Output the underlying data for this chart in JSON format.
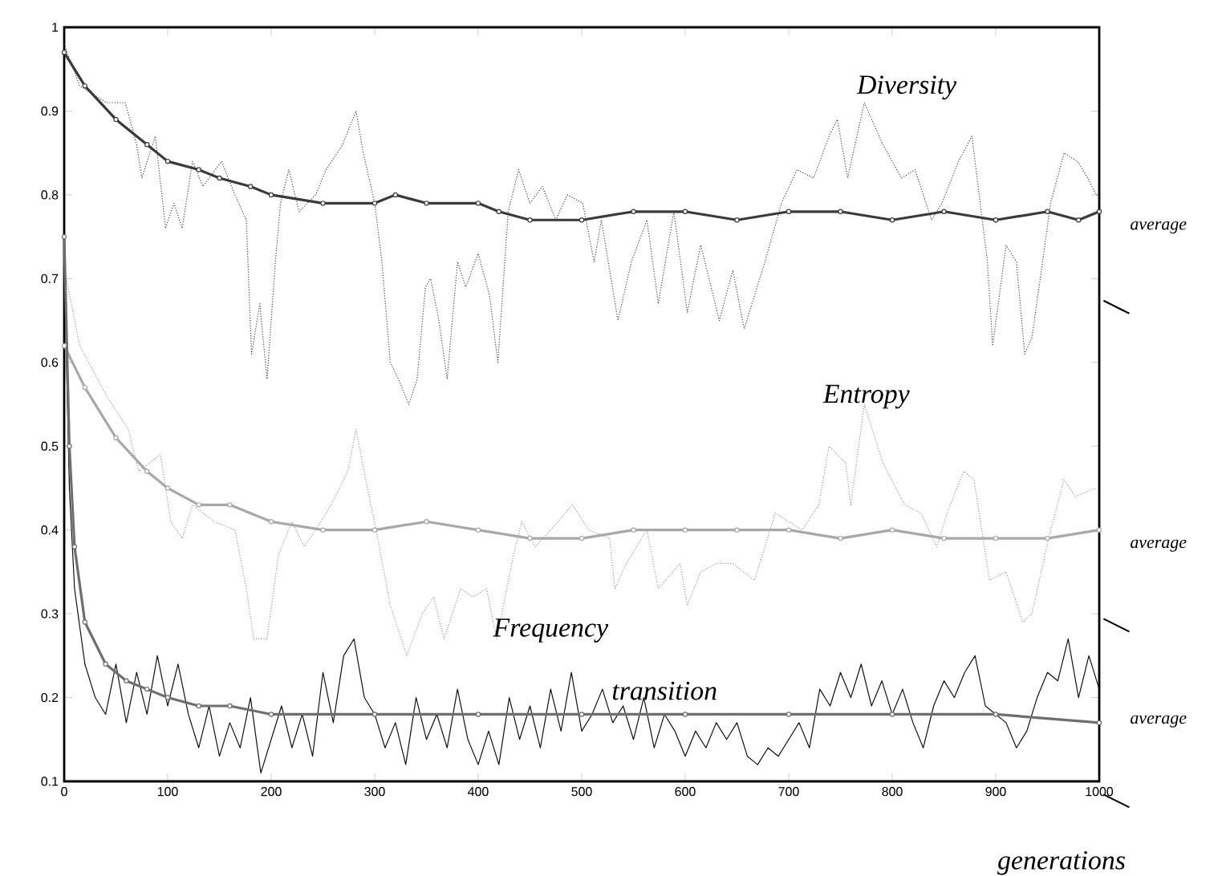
{
  "chart_data": {
    "type": "line",
    "xlabel": "generations",
    "xlim": [
      0,
      1000
    ],
    "ylim": [
      0.1,
      1
    ],
    "xticks": [
      0,
      100,
      200,
      300,
      400,
      500,
      600,
      700,
      800,
      900,
      1000
    ],
    "yticks": [
      0.1,
      0.2,
      0.3,
      0.4,
      0.5,
      0.6,
      0.7,
      0.8,
      0.9,
      1
    ],
    "series": [
      {
        "color": "#444444",
        "line_style": "dotted",
        "marker": "none",
        "x": [
          0,
          15,
          41,
          59,
          70,
          75,
          88,
          98,
          106,
          114,
          124,
          134,
          152,
          165,
          176,
          181,
          189,
          196,
          204,
          209,
          217,
          227,
          243,
          253,
          269,
          282,
          289,
          300,
          307,
          315,
          323,
          333,
          341,
          349,
          354,
          362,
          370,
          380,
          388,
          400,
          411,
          419,
          429,
          439,
          450,
          462,
          475,
          486,
          501,
          512,
          519,
          535,
          548,
          563,
          574,
          589,
          602,
          615,
          633,
          646,
          657,
          677,
          693,
          708,
          724,
          739,
          747,
          757,
          773,
          791,
          809,
          822,
          838,
          848,
          864,
          877,
          884,
          892,
          897,
          910,
          920,
          928,
          935,
          943,
          953,
          966,
          979,
          989,
          997,
          1000
        ],
        "values": [
          0.98,
          0.93,
          0.91,
          0.91,
          0.86,
          0.82,
          0.87,
          0.76,
          0.79,
          0.76,
          0.84,
          0.81,
          0.84,
          0.8,
          0.77,
          0.61,
          0.67,
          0.58,
          0.72,
          0.79,
          0.83,
          0.78,
          0.8,
          0.83,
          0.86,
          0.9,
          0.85,
          0.79,
          0.72,
          0.6,
          0.58,
          0.55,
          0.58,
          0.69,
          0.7,
          0.65,
          0.58,
          0.72,
          0.69,
          0.73,
          0.68,
          0.6,
          0.78,
          0.83,
          0.79,
          0.81,
          0.77,
          0.8,
          0.79,
          0.72,
          0.77,
          0.65,
          0.72,
          0.77,
          0.67,
          0.78,
          0.66,
          0.74,
          0.65,
          0.71,
          0.64,
          0.72,
          0.79,
          0.83,
          0.82,
          0.87,
          0.89,
          0.82,
          0.91,
          0.86,
          0.82,
          0.83,
          0.77,
          0.79,
          0.84,
          0.87,
          0.8,
          0.72,
          0.62,
          0.74,
          0.72,
          0.61,
          0.63,
          0.7,
          0.79,
          0.85,
          0.84,
          0.82,
          0.8,
          0.8
        ]
      },
      {
        "color": "#3a3a3a",
        "line_style": "solid",
        "marker": "circle",
        "x": [
          0,
          20,
          50,
          80,
          100,
          130,
          150,
          180,
          200,
          250,
          300,
          320,
          350,
          400,
          420,
          450,
          500,
          550,
          600,
          650,
          700,
          750,
          800,
          850,
          900,
          950,
          980,
          1000
        ],
        "values": [
          0.97,
          0.93,
          0.89,
          0.86,
          0.84,
          0.83,
          0.82,
          0.81,
          0.8,
          0.79,
          0.79,
          0.8,
          0.79,
          0.79,
          0.78,
          0.77,
          0.77,
          0.78,
          0.78,
          0.77,
          0.78,
          0.78,
          0.77,
          0.78,
          0.77,
          0.78,
          0.77,
          0.78
        ]
      },
      {
        "color": "#999999",
        "line_style": "dotted",
        "marker": "none",
        "x": [
          2,
          15,
          41,
          62,
          72,
          93,
          103,
          114,
          124,
          145,
          165,
          176,
          183,
          196,
          207,
          220,
          232,
          248,
          258,
          274,
          282,
          293,
          303,
          315,
          331,
          346,
          357,
          367,
          383,
          395,
          408,
          418,
          434,
          442,
          455,
          470,
          491,
          507,
          527,
          532,
          543,
          563,
          574,
          595,
          602,
          615,
          630,
          646,
          667,
          687,
          713,
          729,
          739,
          755,
          760,
          773,
          791,
          812,
          828,
          843,
          853,
          869,
          879,
          894,
          910,
          926,
          935,
          951,
          966,
          977,
          997
        ],
        "values": [
          0.7,
          0.62,
          0.56,
          0.52,
          0.47,
          0.49,
          0.41,
          0.39,
          0.43,
          0.41,
          0.4,
          0.33,
          0.27,
          0.27,
          0.37,
          0.41,
          0.38,
          0.41,
          0.43,
          0.47,
          0.52,
          0.45,
          0.39,
          0.31,
          0.25,
          0.3,
          0.32,
          0.27,
          0.33,
          0.32,
          0.33,
          0.27,
          0.37,
          0.41,
          0.38,
          0.4,
          0.43,
          0.4,
          0.39,
          0.33,
          0.36,
          0.4,
          0.33,
          0.36,
          0.31,
          0.35,
          0.36,
          0.36,
          0.34,
          0.42,
          0.4,
          0.43,
          0.5,
          0.48,
          0.43,
          0.55,
          0.48,
          0.43,
          0.42,
          0.38,
          0.42,
          0.47,
          0.46,
          0.34,
          0.35,
          0.29,
          0.3,
          0.39,
          0.46,
          0.44,
          0.45
        ]
      },
      {
        "color": "#a8a8a8",
        "line_style": "solid",
        "marker": "circle",
        "x": [
          0,
          20,
          50,
          80,
          100,
          130,
          160,
          200,
          250,
          300,
          350,
          400,
          450,
          500,
          550,
          600,
          650,
          700,
          750,
          800,
          850,
          900,
          950,
          1000
        ],
        "values": [
          0.62,
          0.57,
          0.51,
          0.47,
          0.45,
          0.43,
          0.43,
          0.41,
          0.4,
          0.4,
          0.41,
          0.4,
          0.39,
          0.39,
          0.4,
          0.4,
          0.4,
          0.4,
          0.39,
          0.4,
          0.39,
          0.39,
          0.39,
          0.4
        ]
      },
      {
        "color": "#111111",
        "line_style": "solid",
        "marker": "none",
        "x": [
          0,
          5,
          10,
          20,
          30,
          40,
          50,
          60,
          70,
          80,
          90,
          100,
          110,
          120,
          130,
          140,
          150,
          160,
          170,
          180,
          190,
          200,
          210,
          220,
          230,
          240,
          250,
          260,
          270,
          280,
          290,
          300,
          310,
          320,
          330,
          340,
          350,
          360,
          370,
          380,
          390,
          400,
          410,
          420,
          430,
          440,
          450,
          460,
          470,
          480,
          490,
          500,
          510,
          520,
          530,
          540,
          550,
          560,
          570,
          580,
          590,
          600,
          610,
          620,
          630,
          640,
          650,
          660,
          670,
          680,
          690,
          700,
          710,
          720,
          730,
          740,
          750,
          760,
          770,
          780,
          790,
          800,
          810,
          820,
          830,
          840,
          850,
          860,
          870,
          880,
          890,
          900,
          910,
          920,
          930,
          940,
          950,
          960,
          970,
          980,
          990,
          1000
        ],
        "values": [
          0.72,
          0.45,
          0.33,
          0.24,
          0.2,
          0.18,
          0.24,
          0.17,
          0.23,
          0.18,
          0.25,
          0.19,
          0.24,
          0.18,
          0.14,
          0.19,
          0.13,
          0.17,
          0.14,
          0.2,
          0.11,
          0.15,
          0.19,
          0.14,
          0.18,
          0.13,
          0.23,
          0.17,
          0.25,
          0.27,
          0.2,
          0.18,
          0.14,
          0.17,
          0.12,
          0.2,
          0.15,
          0.18,
          0.14,
          0.21,
          0.15,
          0.12,
          0.16,
          0.12,
          0.2,
          0.15,
          0.19,
          0.14,
          0.21,
          0.16,
          0.23,
          0.16,
          0.18,
          0.21,
          0.17,
          0.19,
          0.15,
          0.2,
          0.14,
          0.18,
          0.16,
          0.13,
          0.16,
          0.14,
          0.17,
          0.15,
          0.17,
          0.13,
          0.12,
          0.14,
          0.13,
          0.15,
          0.17,
          0.14,
          0.21,
          0.19,
          0.23,
          0.2,
          0.24,
          0.19,
          0.22,
          0.18,
          0.21,
          0.17,
          0.14,
          0.19,
          0.22,
          0.2,
          0.23,
          0.25,
          0.19,
          0.18,
          0.17,
          0.14,
          0.16,
          0.2,
          0.23,
          0.22,
          0.27,
          0.2,
          0.25,
          0.21
        ]
      },
      {
        "color": "#6e6e6e",
        "line_style": "solid",
        "marker": "circle",
        "x": [
          0,
          5,
          10,
          20,
          40,
          60,
          80,
          100,
          130,
          160,
          200,
          300,
          400,
          500,
          600,
          700,
          800,
          900,
          1000
        ],
        "values": [
          0.75,
          0.5,
          0.38,
          0.29,
          0.24,
          0.22,
          0.21,
          0.2,
          0.19,
          0.19,
          0.18,
          0.18,
          0.18,
          0.18,
          0.18,
          0.18,
          0.18,
          0.18,
          0.17
        ]
      }
    ],
    "annotations": [
      "Diversity",
      "Entropy",
      "Frequency",
      "transition",
      "average",
      "average",
      "average"
    ]
  }
}
